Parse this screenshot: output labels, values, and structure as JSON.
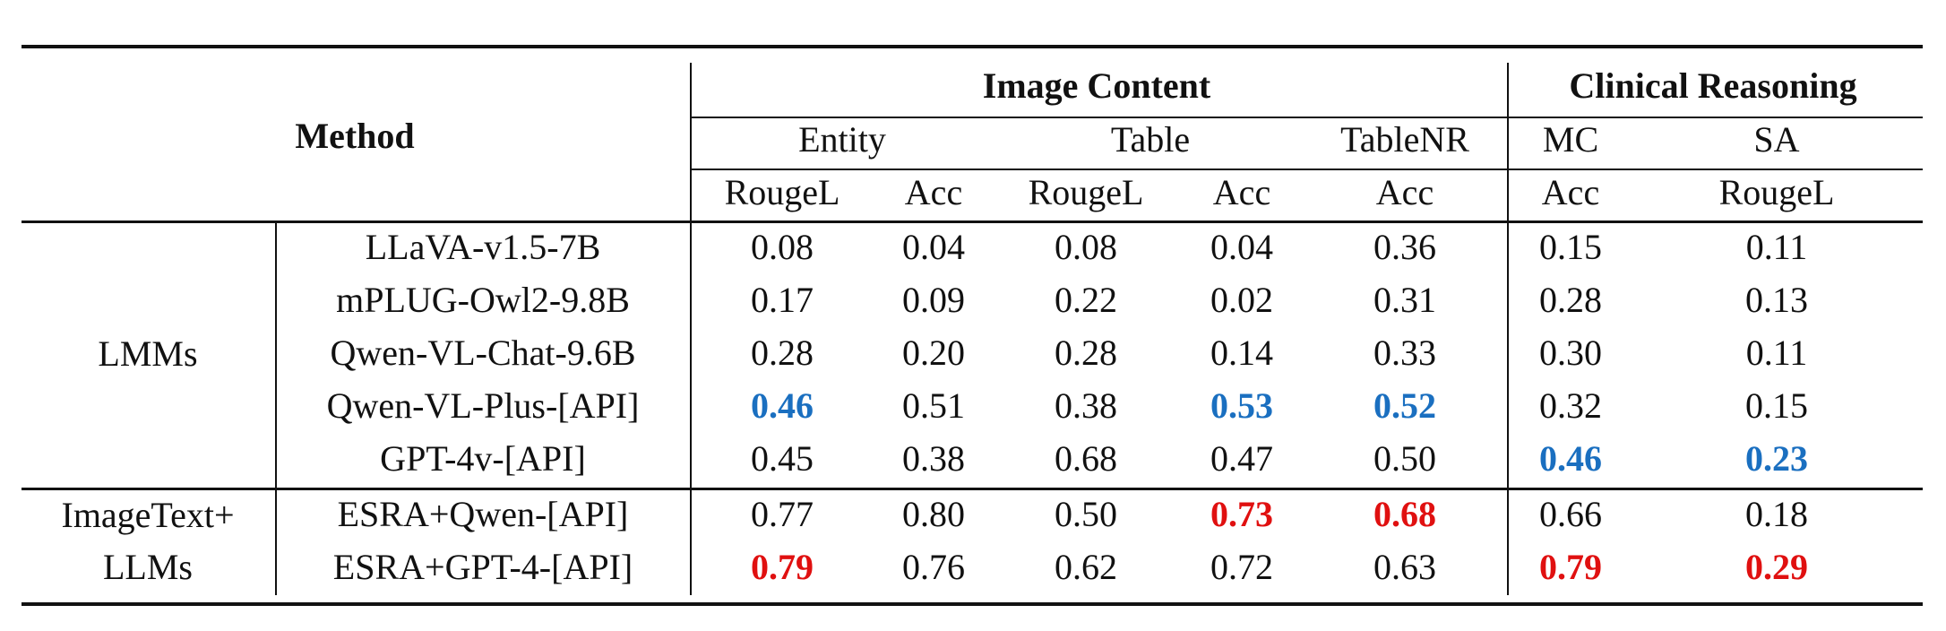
{
  "table": {
    "header": {
      "method": "Method",
      "image_content": "Image Content",
      "clinical_reasoning": "Clinical Reasoning",
      "entity": "Entity",
      "table": "Table",
      "tablenr": "TableNR",
      "mc": "MC",
      "sa": "SA",
      "metrics": [
        "RougeL",
        "Acc",
        "RougeL",
        "Acc",
        "Acc",
        "Acc",
        "RougeL"
      ]
    },
    "groups": {
      "lmms": "LMMs",
      "imagetext_line1": "ImageText+",
      "imagetext_line2": "LLMs"
    },
    "rows": [
      {
        "method": "LLaVA-v1.5-7B",
        "values": [
          "0.08",
          "0.04",
          "0.08",
          "0.04",
          "0.36",
          "0.15",
          "0.11"
        ]
      },
      {
        "method": "mPLUG-Owl2-9.8B",
        "values": [
          "0.17",
          "0.09",
          "0.22",
          "0.02",
          "0.31",
          "0.28",
          "0.13"
        ]
      },
      {
        "method": "Qwen-VL-Chat-9.6B",
        "values": [
          "0.28",
          "0.20",
          "0.28",
          "0.14",
          "0.33",
          "0.30",
          "0.11"
        ]
      },
      {
        "method": "Qwen-VL-Plus-[API]",
        "values": [
          "0.46",
          "0.51",
          "0.38",
          "0.53",
          "0.52",
          "0.32",
          "0.15"
        ]
      },
      {
        "method": "GPT-4v-[API]",
        "values": [
          "0.45",
          "0.38",
          "0.68",
          "0.47",
          "0.50",
          "0.46",
          "0.23"
        ]
      },
      {
        "method": "ESRA+Qwen-[API]",
        "values": [
          "0.77",
          "0.80",
          "0.50",
          "0.73",
          "0.68",
          "0.66",
          "0.18"
        ]
      },
      {
        "method": "ESRA+GPT-4-[API]",
        "values": [
          "0.79",
          "0.76",
          "0.62",
          "0.72",
          "0.63",
          "0.79",
          "0.29"
        ]
      }
    ],
    "highlights": [
      {
        "row": 3,
        "col": 0,
        "style": "best-lmm"
      },
      {
        "row": 3,
        "col": 3,
        "style": "best-lmm"
      },
      {
        "row": 3,
        "col": 4,
        "style": "best-lmm"
      },
      {
        "row": 4,
        "col": 5,
        "style": "best-lmm"
      },
      {
        "row": 4,
        "col": 6,
        "style": "best-lmm"
      },
      {
        "row": 5,
        "col": 3,
        "style": "best-overall"
      },
      {
        "row": 5,
        "col": 4,
        "style": "best-overall"
      },
      {
        "row": 6,
        "col": 0,
        "style": "best-overall"
      },
      {
        "row": 6,
        "col": 5,
        "style": "best-overall"
      },
      {
        "row": 6,
        "col": 6,
        "style": "best-overall"
      }
    ],
    "colors": {
      "best_lmm": "#1a6fc0",
      "best_overall": "#e01010",
      "rule": "#111111"
    }
  }
}
